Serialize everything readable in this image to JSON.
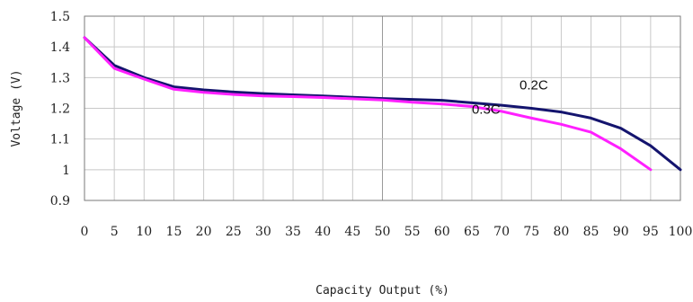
{
  "chart_data": {
    "type": "line",
    "xlabel": "Capacity Output (%)",
    "ylabel": "Voltage (V)",
    "xlim": [
      0,
      100
    ],
    "ylim": [
      0.9,
      1.5
    ],
    "x_ticks": [
      0,
      5,
      10,
      15,
      20,
      25,
      30,
      35,
      40,
      45,
      50,
      55,
      60,
      65,
      70,
      75,
      80,
      85,
      90,
      95,
      100
    ],
    "y_ticks": [
      0.9,
      1,
      1.1,
      1.2,
      1.3,
      1.4,
      1.5
    ],
    "y_tick_labels": [
      "0.9",
      "1",
      "1.1",
      "1.2",
      "1.3",
      "1.4",
      "1.5"
    ],
    "grid": true,
    "series": [
      {
        "name": "0.2C",
        "color": "#14146e",
        "x": [
          0,
          5,
          10,
          15,
          20,
          25,
          30,
          35,
          40,
          45,
          50,
          55,
          60,
          65,
          70,
          75,
          80,
          85,
          90,
          95,
          100
        ],
        "y": [
          1.43,
          1.34,
          1.3,
          1.27,
          1.26,
          1.253,
          1.248,
          1.244,
          1.24,
          1.236,
          1.232,
          1.229,
          1.226,
          1.218,
          1.21,
          1.2,
          1.188,
          1.168,
          1.135,
          1.078,
          1.0
        ]
      },
      {
        "name": "0.3C",
        "color": "#ff20ff",
        "x": [
          0,
          5,
          10,
          15,
          20,
          25,
          30,
          35,
          40,
          45,
          50,
          55,
          60,
          65,
          70,
          75,
          80,
          85,
          90,
          95
        ],
        "y": [
          1.43,
          1.33,
          1.295,
          1.262,
          1.252,
          1.245,
          1.24,
          1.238,
          1.235,
          1.231,
          1.227,
          1.22,
          1.214,
          1.206,
          1.19,
          1.168,
          1.148,
          1.122,
          1.068,
          1.0
        ]
      }
    ]
  }
}
